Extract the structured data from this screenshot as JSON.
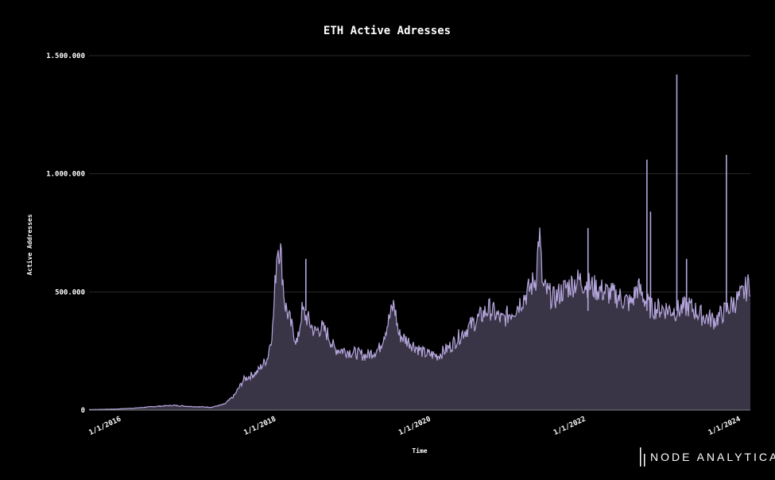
{
  "chart_data": {
    "type": "area",
    "title": "ETH Active Adresses",
    "xlabel": "Time",
    "ylabel": "Active Addresses",
    "ylim": [
      0,
      1500000
    ],
    "xlim": [
      "2015-08-01",
      "2024-02-15"
    ],
    "y_ticks": [
      {
        "value": 0,
        "label": "0"
      },
      {
        "value": 500000,
        "label": "500.000"
      },
      {
        "value": 1000000,
        "label": "1.000.000"
      },
      {
        "value": 1500000,
        "label": "1.500.000"
      }
    ],
    "x_ticks": [
      {
        "date": "2016-01-01",
        "label": "1/1/2016"
      },
      {
        "date": "2018-01-01",
        "label": "1/1/2018"
      },
      {
        "date": "2020-01-01",
        "label": "1/1/2020"
      },
      {
        "date": "2022-01-01",
        "label": "1/1/2022"
      },
      {
        "date": "2024-01-01",
        "label": "1/1/2024"
      }
    ],
    "grid": true,
    "series": [
      {
        "name": "Active Addresses",
        "color": "#b4a6dc",
        "fill": "#3a3546",
        "points": [
          [
            "2015-08-01",
            2000
          ],
          [
            "2015-12-01",
            4000
          ],
          [
            "2016-03-01",
            8000
          ],
          [
            "2016-06-01",
            15000
          ],
          [
            "2016-09-01",
            20000
          ],
          [
            "2016-12-01",
            15000
          ],
          [
            "2017-03-01",
            12000
          ],
          [
            "2017-05-01",
            25000
          ],
          [
            "2017-06-15",
            60000
          ],
          [
            "2017-08-01",
            130000
          ],
          [
            "2017-10-01",
            160000
          ],
          [
            "2017-11-20",
            220000
          ],
          [
            "2017-12-15",
            350000
          ],
          [
            "2018-01-05",
            700000
          ],
          [
            "2018-01-20",
            680000
          ],
          [
            "2018-02-10",
            450000
          ],
          [
            "2018-03-15",
            350000
          ],
          [
            "2018-04-10",
            280000
          ],
          [
            "2018-05-01",
            420000
          ],
          [
            "2018-06-01",
            380000
          ],
          [
            "2018-07-01",
            330000
          ],
          [
            "2018-08-01",
            350000
          ],
          [
            "2018-09-01",
            320000
          ],
          [
            "2018-10-01",
            260000
          ],
          [
            "2018-12-01",
            250000
          ],
          [
            "2019-03-01",
            230000
          ],
          [
            "2019-05-01",
            260000
          ],
          [
            "2019-06-15",
            380000
          ],
          [
            "2019-07-10",
            450000
          ],
          [
            "2019-08-01",
            320000
          ],
          [
            "2019-10-01",
            280000
          ],
          [
            "2019-12-01",
            240000
          ],
          [
            "2020-02-01",
            230000
          ],
          [
            "2020-04-01",
            270000
          ],
          [
            "2020-06-01",
            330000
          ],
          [
            "2020-08-01",
            380000
          ],
          [
            "2020-10-01",
            430000
          ],
          [
            "2020-12-01",
            380000
          ],
          [
            "2021-02-01",
            430000
          ],
          [
            "2021-04-01",
            500000
          ],
          [
            "2021-05-10",
            560000
          ],
          [
            "2021-05-25",
            760000
          ],
          [
            "2021-06-10",
            520000
          ],
          [
            "2021-08-01",
            470000
          ],
          [
            "2021-10-01",
            520000
          ],
          [
            "2021-12-01",
            550000
          ],
          [
            "2022-02-01",
            520000
          ],
          [
            "2022-04-01",
            500000
          ],
          [
            "2022-06-01",
            480000
          ],
          [
            "2022-08-01",
            450000
          ],
          [
            "2022-09-01",
            520000
          ],
          [
            "2022-11-01",
            430000
          ],
          [
            "2023-01-01",
            430000
          ],
          [
            "2023-03-01",
            420000
          ],
          [
            "2023-05-01",
            440000
          ],
          [
            "2023-07-01",
            400000
          ],
          [
            "2023-09-01",
            380000
          ],
          [
            "2023-11-01",
            430000
          ],
          [
            "2024-01-01",
            480000
          ],
          [
            "2024-02-15",
            540000
          ]
        ],
        "spikes": [
          [
            "2022-10-15",
            1060000
          ],
          [
            "2022-11-01",
            840000
          ],
          [
            "2023-03-05",
            1420000
          ],
          [
            "2023-04-20",
            640000
          ],
          [
            "2023-10-25",
            1080000
          ],
          [
            "2018-05-20",
            640000
          ],
          [
            "2022-01-10",
            770000
          ]
        ]
      }
    ]
  },
  "logo": {
    "text": "NODE ANALYTICA"
  }
}
